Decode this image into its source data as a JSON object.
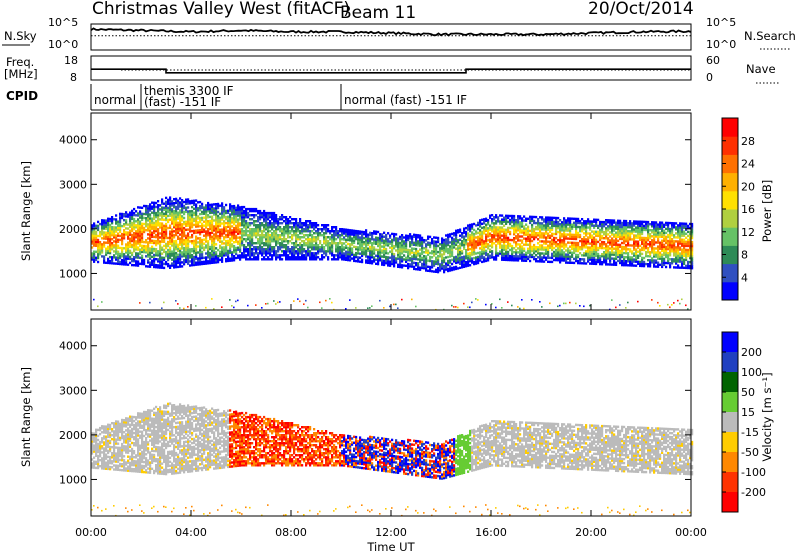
{
  "header": {
    "title": "Christmas Valley West (fitACF)",
    "beam": "Beam 11",
    "date": "20/Oct/2014"
  },
  "chart_data": [
    {
      "type": "line",
      "panel": "noise",
      "left_label": "N.Sky",
      "right_label": "N.Search",
      "left_ticks": [
        "10^5",
        "10^0"
      ],
      "right_ticks": [
        "10^5",
        "10^0"
      ],
      "x": [
        0,
        2,
        4,
        6,
        8,
        10,
        12,
        14,
        16,
        18,
        20,
        22,
        24
      ],
      "sky": [
        0.8,
        0.75,
        0.7,
        0.75,
        0.7,
        0.7,
        0.65,
        0.6,
        0.6,
        0.6,
        0.65,
        0.7,
        0.72
      ],
      "search": [
        0.55,
        0.55,
        0.55,
        0.55,
        0.55,
        0.55,
        0.55,
        0.55,
        0.55,
        0.55,
        0.55,
        0.55,
        0.55
      ]
    },
    {
      "type": "line",
      "panel": "frequency",
      "left_label": "Freq.",
      "left_unit": "[MHz]",
      "right_label": "Nave",
      "left_ticks": [
        "18",
        "8"
      ],
      "right_ticks": [
        "60",
        "0"
      ],
      "freq_steps": [
        [
          0,
          12.5
        ],
        [
          3,
          11.0
        ],
        [
          15,
          12.5
        ],
        [
          24,
          12.5
        ]
      ],
      "nave_steps": [
        [
          0,
          25
        ],
        [
          1.2,
          25
        ],
        [
          24,
          25
        ]
      ]
    },
    {
      "type": "table",
      "panel": "cpid",
      "label": "CPID",
      "segments": [
        {
          "start": 0,
          "end": 2,
          "text": "normal",
          "text2": ""
        },
        {
          "start": 2,
          "end": 10,
          "text": "themis 3300 IF",
          "text2": "(fast) -151 IF"
        },
        {
          "start": 10,
          "end": 24,
          "text": "normal (fast) -151 IF",
          "text2": ""
        }
      ]
    },
    {
      "type": "heatmap",
      "panel": "power",
      "ylabel": "Slant Range [km]",
      "yticks": [
        1000,
        2000,
        3000,
        4000
      ],
      "ylim": [
        180,
        4600
      ],
      "colorbar_label": "Power [dB]",
      "colorbar_ticks": [
        4,
        8,
        12,
        16,
        20,
        24,
        28
      ],
      "colorbar_range": [
        0,
        32
      ],
      "colors": [
        "#0000ff",
        "#3050c0",
        "#2e8b57",
        "#66c266",
        "#b0d040",
        "#ffe000",
        "#ffb000",
        "#ff7000",
        "#ff3000",
        "#ff0000"
      ]
    },
    {
      "type": "heatmap",
      "panel": "velocity",
      "ylabel": "Slant Range [km]",
      "yticks": [
        1000,
        2000,
        3000,
        4000
      ],
      "ylim": [
        180,
        4600
      ],
      "colorbar_label": "Velocity [m s⁻¹]",
      "colorbar_ticks": [
        200,
        100,
        50,
        15,
        -15,
        -50,
        -100,
        -200
      ],
      "colors": [
        "#0000ff",
        "#2040c0",
        "#006400",
        "#66cc33",
        "#bbbbbb",
        "#ffcc00",
        "#ff8800",
        "#ff3300",
        "#ff0000"
      ]
    }
  ],
  "time_axis": {
    "xlabel": "Time UT",
    "ticks": [
      "00:00",
      "04:00",
      "08:00",
      "12:00",
      "16:00",
      "20:00",
      "00:00"
    ],
    "range_hours": [
      0,
      24
    ]
  },
  "ground_scatter_band": {
    "segments": [
      [
        0,
        1250,
        2100
      ],
      [
        3,
        1100,
        2700
      ],
      [
        6,
        1300,
        2500
      ],
      [
        10,
        1300,
        2000
      ],
      [
        14,
        1000,
        1800
      ],
      [
        16,
        1300,
        2300
      ],
      [
        24,
        1100,
        2100
      ]
    ]
  }
}
